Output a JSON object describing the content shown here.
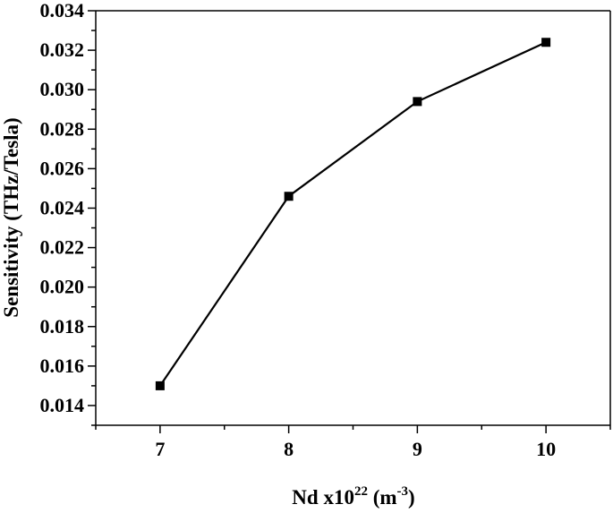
{
  "chart_data": {
    "type": "line",
    "xlabel": {
      "base": "Nd x10",
      "base_sup": "22",
      "unit_open": " (m",
      "unit_sup": "-3",
      "unit_close": ")"
    },
    "ylabel": "Sensitivity (THz/Tesla)",
    "xlim": [
      6.5,
      10.5
    ],
    "ylim": [
      0.013,
      0.034
    ],
    "xticks": [
      "7",
      "8",
      "9",
      "10"
    ],
    "yticks": [
      "0.014",
      "0.016",
      "0.018",
      "0.020",
      "0.022",
      "0.024",
      "0.026",
      "0.028",
      "0.030",
      "0.032",
      "0.034"
    ],
    "grid": false,
    "marker": "square",
    "series": [
      {
        "x": [
          7,
          8,
          9,
          10
        ],
        "y": [
          0.015,
          0.0246,
          0.0294,
          0.0324
        ],
        "color": "#000000"
      }
    ]
  }
}
